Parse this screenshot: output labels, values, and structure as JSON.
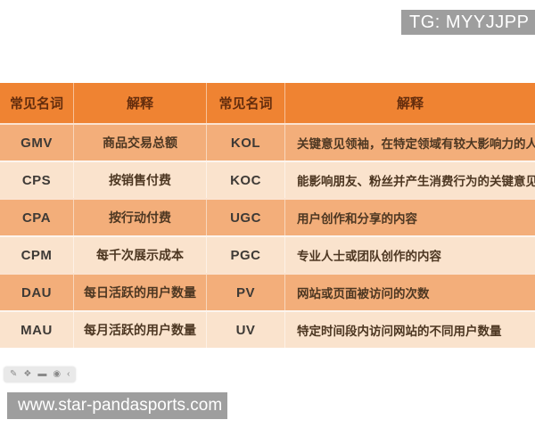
{
  "watermark_top": {
    "label": "TG: MYYJJPP"
  },
  "footer": {
    "url": "www.star-pandasports.com"
  },
  "toolbar": {
    "icons": [
      {
        "name": "pencil-icon",
        "glyph": "✎"
      },
      {
        "name": "mosaic-icon",
        "glyph": "❖"
      },
      {
        "name": "frame-icon",
        "glyph": "▬"
      },
      {
        "name": "dot-icon",
        "glyph": "◉"
      },
      {
        "name": "collapse-arrow-icon",
        "glyph": "‹"
      }
    ]
  },
  "colors": {
    "header_bg": "#ef8332",
    "row_odd": "#f3ae7a",
    "row_even": "#fae3cd",
    "badge_bg": "#9e9e9e",
    "header_text": "#642d0d"
  },
  "table": {
    "headers": [
      "常见名词",
      "解释",
      "常见名词",
      "解释"
    ],
    "rows": [
      {
        "term1": "GMV",
        "def1": "商品交易总额",
        "term2": "KOL",
        "def2": "关键意见领袖，在特定领域有较大影响力的人"
      },
      {
        "term1": "CPS",
        "def1": "按销售付费",
        "term2": "KOC",
        "def2": "能影响朋友、粉丝并产生消费行为的关键意见"
      },
      {
        "term1": "CPA",
        "def1": "按行动付费",
        "term2": "UGC",
        "def2": "用户创作和分享的内容"
      },
      {
        "term1": "CPM",
        "def1": "每千次展示成本",
        "term2": "PGC",
        "def2": "专业人士或团队创作的内容"
      },
      {
        "term1": "DAU",
        "def1": "每日活跃的用户数量",
        "term2": "PV",
        "def2": "网站或页面被访问的次数"
      },
      {
        "term1": "MAU",
        "def1": "每月活跃的用户数量",
        "term2": "UV",
        "def2": "特定时间段内访问网站的不同用户数量"
      }
    ]
  }
}
